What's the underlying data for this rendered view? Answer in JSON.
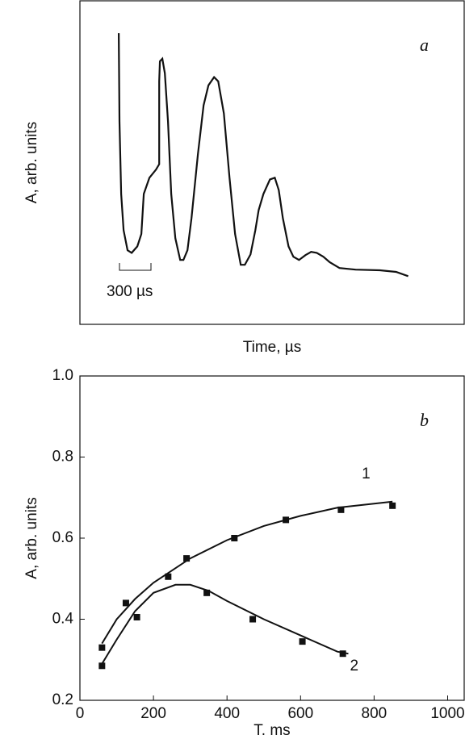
{
  "chart_data": [
    {
      "type": "line",
      "panel_label": "a",
      "xlabel": "Time, µs",
      "ylabel": "A, arb. units",
      "scale_bar_label": "300  µs",
      "xlim": [
        0,
        3660
      ],
      "ylim": [
        0,
        1
      ],
      "color": "#111111",
      "x": [
        370,
        377,
        393,
        416,
        454,
        493,
        547,
        585,
        608,
        662,
        724,
        755,
        755,
        762,
        785,
        809,
        839,
        870,
        909,
        955,
        986,
        1024,
        1063,
        1124,
        1178,
        1224,
        1278,
        1317,
        1371,
        1425,
        1478,
        1532,
        1571,
        1625,
        1671,
        1702,
        1748,
        1810,
        1856,
        1894,
        1933,
        1987,
        2033,
        2087,
        2148,
        2202,
        2256,
        2318,
        2379,
        2472,
        2626,
        2857,
        3011,
        3126
      ],
      "values": [
        0.9,
        0.627,
        0.403,
        0.291,
        0.229,
        0.221,
        0.241,
        0.279,
        0.403,
        0.453,
        0.478,
        0.495,
        0.751,
        0.813,
        0.821,
        0.776,
        0.627,
        0.403,
        0.266,
        0.199,
        0.199,
        0.229,
        0.328,
        0.527,
        0.677,
        0.739,
        0.764,
        0.751,
        0.652,
        0.453,
        0.279,
        0.184,
        0.184,
        0.216,
        0.291,
        0.353,
        0.403,
        0.448,
        0.453,
        0.415,
        0.328,
        0.241,
        0.209,
        0.199,
        0.214,
        0.224,
        0.221,
        0.209,
        0.192,
        0.174,
        0.169,
        0.167,
        0.162,
        0.149
      ]
    },
    {
      "type": "scatter",
      "panel_label": "b",
      "xlabel": "T, ms",
      "ylabel": "A, arb. units",
      "xlim": [
        0,
        1045
      ],
      "ylim": [
        0.2,
        1.0
      ],
      "xticks": [
        0,
        200,
        400,
        600,
        800,
        1000
      ],
      "yticks": [
        {
          "value": 0.2,
          "label": "0.2"
        },
        {
          "value": 0.4,
          "label": "0.4"
        },
        {
          "value": 0.6,
          "label": "0.6"
        },
        {
          "value": 0.8,
          "label": "0.8"
        },
        {
          "value": 1.0,
          "label": "1.0"
        }
      ],
      "series": [
        {
          "name": "1",
          "color": "#111111",
          "x": [
            60,
            125,
            240,
            290,
            420,
            560,
            710,
            850
          ],
          "values": [
            0.33,
            0.44,
            0.505,
            0.55,
            0.6,
            0.645,
            0.67,
            0.68
          ],
          "fit_x": [
            60,
            100,
            150,
            200,
            250,
            300,
            400,
            500,
            600,
            700,
            850
          ],
          "fit_values": [
            0.34,
            0.4,
            0.45,
            0.49,
            0.52,
            0.55,
            0.595,
            0.63,
            0.655,
            0.675,
            0.69
          ]
        },
        {
          "name": "2",
          "color": "#111111",
          "x": [
            60,
            155,
            345,
            470,
            605,
            715
          ],
          "values": [
            0.285,
            0.405,
            0.465,
            0.4,
            0.345,
            0.315
          ],
          "fit_x": [
            60,
            100,
            150,
            200,
            260,
            300,
            350,
            400,
            500,
            600,
            700,
            730
          ],
          "fit_values": [
            0.29,
            0.35,
            0.42,
            0.465,
            0.485,
            0.485,
            0.47,
            0.445,
            0.4,
            0.36,
            0.32,
            0.315
          ]
        }
      ]
    }
  ]
}
